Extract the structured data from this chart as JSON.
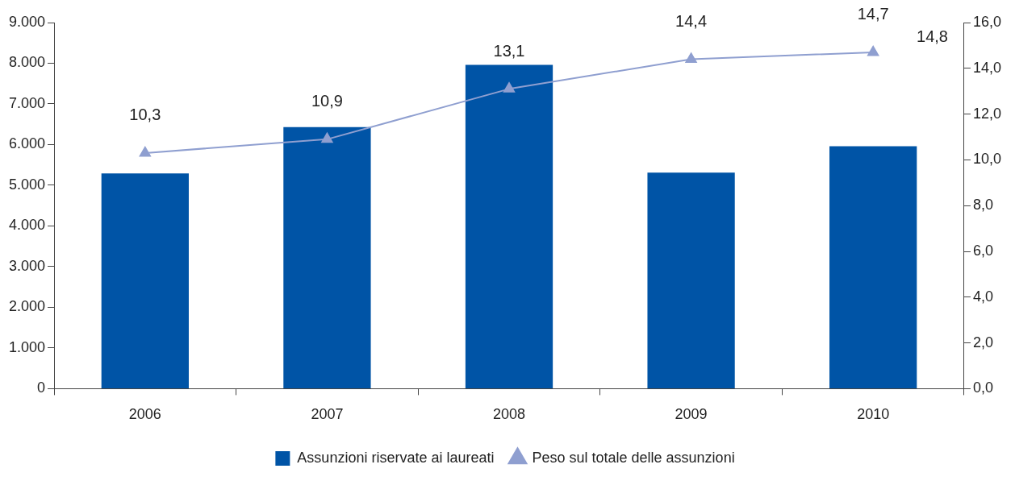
{
  "chart_data": {
    "type": "bar",
    "categories": [
      "2006",
      "2007",
      "2008",
      "2009",
      "2010"
    ],
    "series": [
      {
        "name": "Assunzioni riservate ai laureati",
        "color": "#0054a6",
        "values": [
          5290,
          6430,
          7960,
          5310,
          5960
        ]
      },
      {
        "name": "Peso sul totale delle assunzioni",
        "type": "line",
        "axis": "y2",
        "color": "#8f9fd0",
        "marker": "triangle",
        "values": [
          10.3,
          10.9,
          13.1,
          14.4,
          14.7
        ],
        "value_labels": [
          "10,3",
          "10,9",
          "13,1",
          "14,4",
          "14,7"
        ]
      }
    ],
    "ylim": [
      0,
      9000
    ],
    "yticks": [
      {
        "value": 0,
        "label": "0"
      },
      {
        "value": 1000,
        "label": "1.000"
      },
      {
        "value": 2000,
        "label": "2.000"
      },
      {
        "value": 3000,
        "label": "3.000"
      },
      {
        "value": 4000,
        "label": "4.000"
      },
      {
        "value": 5000,
        "label": "5.000"
      },
      {
        "value": 6000,
        "label": "6.000"
      },
      {
        "value": 7000,
        "label": "7.000"
      },
      {
        "value": 8000,
        "label": "8.000"
      },
      {
        "value": 9000,
        "label": "9.000"
      }
    ],
    "y2lim": [
      0,
      16
    ],
    "y2ticks": [
      {
        "value": 0,
        "label": "0,0"
      },
      {
        "value": 2,
        "label": "2,0"
      },
      {
        "value": 4,
        "label": "4,0"
      },
      {
        "value": 6,
        "label": "6,0"
      },
      {
        "value": 8,
        "label": "8,0"
      },
      {
        "value": 10,
        "label": "10,0"
      },
      {
        "value": 12,
        "label": "12,0"
      },
      {
        "value": 14,
        "label": "14,0"
      },
      {
        "value": 16,
        "label": "16,0"
      }
    ],
    "annotations": [
      "14,8"
    ],
    "legend": "bottom",
    "grid": false
  }
}
